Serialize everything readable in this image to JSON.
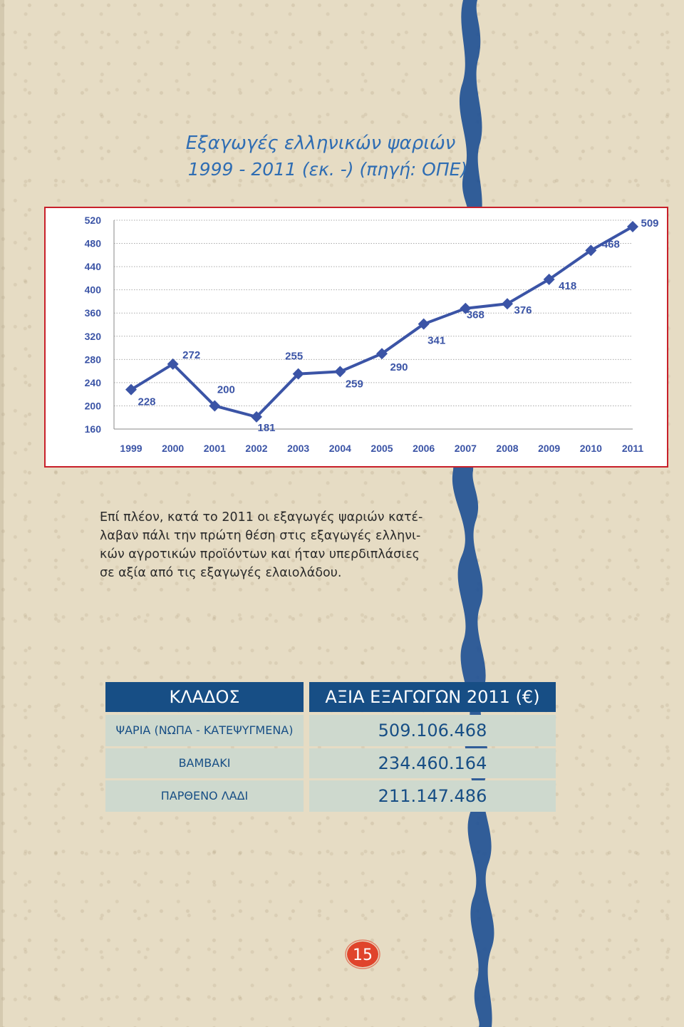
{
  "title": {
    "line1": "Εξαγωγές ελληνικών ψαριών",
    "line2": "1999 - 2011 (εκ. -) (πηγή: ΟΠΕ)"
  },
  "chart_data": {
    "type": "line",
    "categories": [
      "1999",
      "2000",
      "2001",
      "2002",
      "2003",
      "2004",
      "2005",
      "2006",
      "2007",
      "2008",
      "2009",
      "2010",
      "2011"
    ],
    "values": [
      228,
      272,
      200,
      181,
      255,
      259,
      290,
      341,
      368,
      376,
      418,
      468,
      509
    ],
    "data_labels": [
      "228",
      "272",
      "200",
      "181",
      "255",
      "259",
      "290",
      "341",
      "368",
      "376",
      "418",
      "468",
      "509"
    ],
    "ylim": [
      160,
      520
    ],
    "yticks": [
      "160",
      "200",
      "240",
      "280",
      "320",
      "360",
      "400",
      "440",
      "480",
      "520"
    ],
    "grid": true,
    "line_color": "#3b54a6",
    "marker": "diamond"
  },
  "paragraph": {
    "lines": [
      "Επί πλέον, κατά το  2011  οι εξαγωγές ψαριών κατέ-",
      "λαβαν πάλι την  πρώτη θέση στις εξαγωγές ελληνι-",
      "κών αγροτικών προϊόντων και ήταν υπερδιπλάσιες",
      "σε αξία από τις εξαγωγές ελαιολάδου."
    ]
  },
  "table": {
    "headers": [
      "ΚΛΑΔΟΣ",
      "ΑΞΙΑ ΕΞΑΓΩΓΩΝ 2011 (€)"
    ],
    "rows": [
      {
        "sector": "ΨΑΡΙΑ (ΝΩΠΑ - ΚΑΤΕΨΥΓΜΕΝΑ)",
        "value": "509.106.468"
      },
      {
        "sector": "ΒΑΜΒΑΚΙ",
        "value": "234.460.164"
      },
      {
        "sector": "ΠΑΡΘΕΝΟ ΛΑΔΙ",
        "value": "211.147.486"
      }
    ]
  },
  "page_number": "15",
  "colors": {
    "accent_blue": "#174e85",
    "title_blue": "#2f6db3",
    "frame_red": "#c8202a",
    "row_bg": "#ced9ce",
    "page_badge": "#e0442c"
  }
}
